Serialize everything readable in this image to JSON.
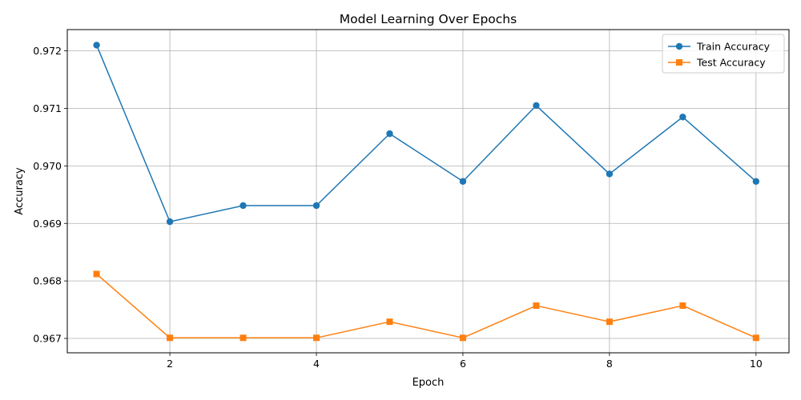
{
  "chart_data": {
    "type": "line",
    "title": "Model Learning Over Epochs",
    "xlabel": "Epoch",
    "ylabel": "Accuracy",
    "x": [
      1,
      2,
      3,
      4,
      5,
      6,
      7,
      8,
      9,
      10
    ],
    "xlim": [
      0.6,
      10.45
    ],
    "ylim": [
      0.96675,
      0.97237
    ],
    "xticks": [
      2,
      4,
      6,
      8,
      10
    ],
    "yticks": [
      0.967,
      0.968,
      0.969,
      0.97,
      0.971,
      0.972
    ],
    "ytick_labels": [
      "0.967",
      "0.968",
      "0.969",
      "0.970",
      "0.971",
      "0.972"
    ],
    "grid": true,
    "legend_position": "top-right",
    "series": [
      {
        "name": "Train Accuracy",
        "color": "#1f77b4",
        "marker": "circle",
        "values": [
          0.9721,
          0.96903,
          0.96931,
          0.96931,
          0.97056,
          0.96973,
          0.97105,
          0.96986,
          0.97085,
          0.96973
        ]
      },
      {
        "name": "Test Accuracy",
        "color": "#ff7f0e",
        "marker": "square",
        "values": [
          0.96812,
          0.96701,
          0.96701,
          0.96701,
          0.96729,
          0.96701,
          0.96757,
          0.96729,
          0.96757,
          0.96701
        ]
      }
    ]
  }
}
